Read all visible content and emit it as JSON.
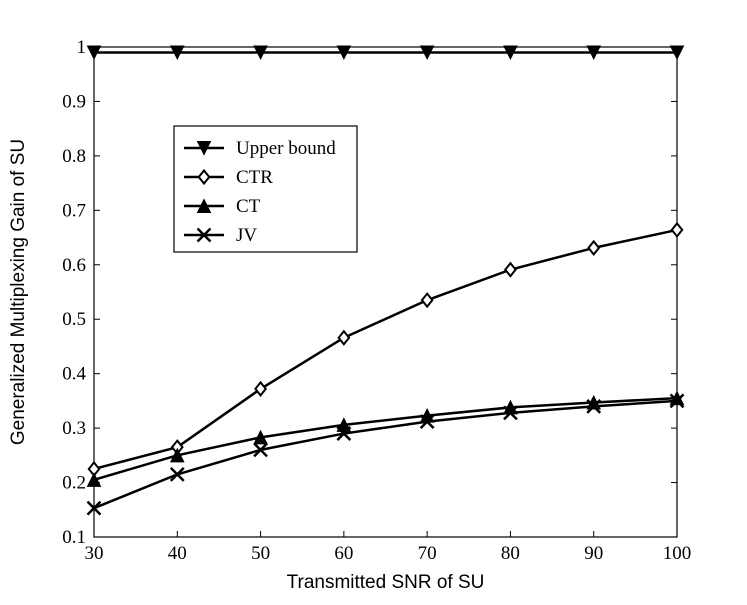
{
  "chart_data": {
    "type": "line",
    "title": "",
    "xlabel": "Transmitted SNR of SU",
    "ylabel": "Generalized Multiplexing Gain of SU",
    "xlim": [
      30,
      100
    ],
    "ylim": [
      0.1,
      1
    ],
    "x_ticks": [
      30,
      40,
      50,
      60,
      70,
      80,
      90,
      100
    ],
    "y_ticks": [
      0.1,
      0.2,
      0.3,
      0.4,
      0.5,
      0.6,
      0.7,
      0.8,
      0.9,
      1
    ],
    "y_tick_labels": [
      "0.1",
      "0.2",
      "0.3",
      "0.4",
      "0.5",
      "0.6",
      "0.7",
      "0.8",
      "0.9",
      "1"
    ],
    "grid": false,
    "legend_position": "upper-left",
    "x": [
      30,
      40,
      50,
      60,
      70,
      80,
      90,
      100
    ],
    "series": [
      {
        "name": "Upper bound",
        "marker": "triangle-down",
        "color": "#000000",
        "values": [
          0.99,
          0.99,
          0.99,
          0.99,
          0.99,
          0.99,
          0.99,
          0.99
        ]
      },
      {
        "name": "CTR",
        "marker": "diamond",
        "color": "#000000",
        "values": [
          0.225,
          0.265,
          0.372,
          0.466,
          0.535,
          0.591,
          0.631,
          0.664
        ]
      },
      {
        "name": "CT",
        "marker": "triangle-up",
        "color": "#000000",
        "values": [
          0.205,
          0.25,
          0.283,
          0.306,
          0.323,
          0.338,
          0.347,
          0.355
        ]
      },
      {
        "name": "JV",
        "marker": "x",
        "color": "#000000",
        "values": [
          0.153,
          0.215,
          0.26,
          0.29,
          0.312,
          0.328,
          0.34,
          0.35
        ]
      }
    ]
  }
}
